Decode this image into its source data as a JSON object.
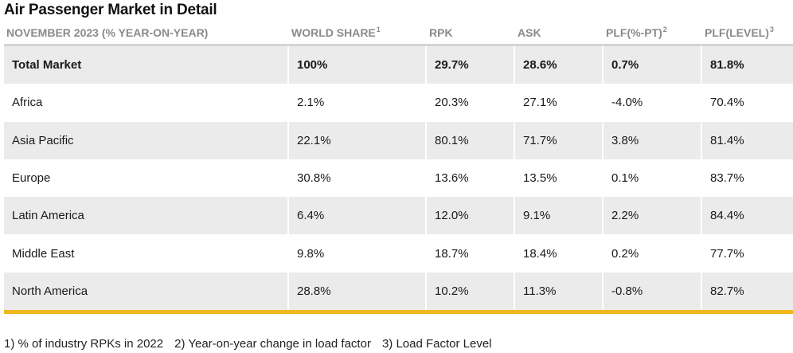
{
  "title": "Air Passenger Market in Detail",
  "headers": [
    {
      "label": "NOVEMBER 2023 (% YEAR-ON-YEAR)",
      "sup": ""
    },
    {
      "label": "WORLD SHARE",
      "sup": "1"
    },
    {
      "label": "RPK",
      "sup": ""
    },
    {
      "label": "ASK",
      "sup": ""
    },
    {
      "label": "PLF(%-PT)",
      "sup": "2"
    },
    {
      "label": "PLF(LEVEL)",
      "sup": "3"
    }
  ],
  "rows": [
    [
      "Total Market",
      "100%",
      "29.7%",
      "28.6%",
      "0.7%",
      "81.8%"
    ],
    [
      "Africa",
      "2.1%",
      "20.3%",
      "27.1%",
      "-4.0%",
      "70.4%"
    ],
    [
      "Asia Pacific",
      "22.1%",
      "80.1%",
      "71.7%",
      "3.8%",
      "81.4%"
    ],
    [
      "Europe",
      "30.8%",
      "13.6%",
      "13.5%",
      "0.1%",
      "83.7%"
    ],
    [
      "Latin America",
      "6.4%",
      "12.0%",
      "9.1%",
      "2.2%",
      "84.4%"
    ],
    [
      "Middle East",
      "9.8%",
      "18.7%",
      "18.4%",
      "0.2%",
      "77.7%"
    ],
    [
      "North America",
      "28.8%",
      "10.2%",
      "11.3%",
      "-0.8%",
      "82.7%"
    ]
  ],
  "footnotes": [
    "1) % of industry RPKs in 2022",
    "2) Year-on-year change in load factor",
    "3) Load Factor Level"
  ],
  "colors": {
    "header_text": "#8a8a8a",
    "shaded_row": "#ebebeb",
    "accent_rule": "#f0b81d"
  }
}
